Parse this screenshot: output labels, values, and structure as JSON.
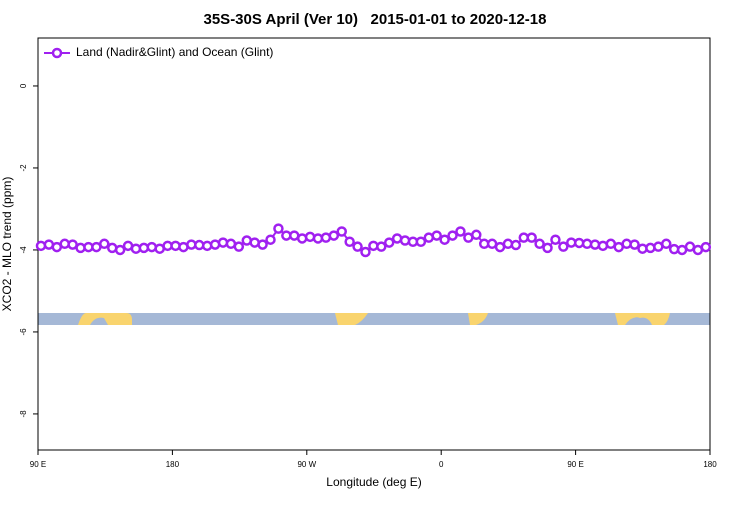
{
  "chart_data": {
    "type": "line",
    "title": "35S-30S April (Ver 10)   2015-01-01 to 2020-12-18",
    "xlabel": "Longitude (deg E)",
    "ylabel": "XCO2 - MLO trend (ppm)",
    "xlim": [
      90,
      540
    ],
    "ylim": [
      -8.88,
      1.17
    ],
    "xticks": [
      {
        "value": 90,
        "label": "90 E"
      },
      180,
      {
        "value": 270,
        "label": "90 W"
      },
      {
        "value": 360,
        "label": "0"
      },
      {
        "value": 450,
        "label": "90 E"
      },
      {
        "value": 540,
        "label": "180"
      }
    ],
    "yticks": [
      0,
      -2,
      -4,
      -6,
      -8
    ],
    "legend": "top-left",
    "x": [
      92,
      97.3,
      102.6,
      107.9,
      113.2,
      118.5,
      123.8,
      129.1,
      134.4,
      139.7,
      145,
      150.3,
      155.6,
      160.9,
      166.2,
      171.5,
      176.8,
      182.1,
      187.4,
      192.7,
      198,
      203.3,
      208.6,
      213.9,
      219.2,
      224.5,
      229.8,
      235.1,
      240.4,
      245.7,
      251,
      256.3,
      261.6,
      266.9,
      272.2,
      277.5,
      282.8,
      288.1,
      293.4,
      298.7,
      304,
      309.3,
      314.6,
      319.9,
      325.2,
      330.5,
      335.8,
      341.1,
      346.4,
      351.7,
      357,
      362.3,
      367.6,
      372.9,
      378.2,
      383.5,
      388.8,
      394.1,
      399.4,
      404.7,
      410,
      415.3,
      420.6,
      425.9,
      431.2,
      436.5,
      441.8,
      447.1,
      452.4,
      457.7,
      463,
      468.3,
      473.6,
      478.9,
      484.2,
      489.5,
      494.8,
      500.1,
      505.4,
      510.7,
      516,
      521.3,
      526.6,
      531.9,
      537.2
    ],
    "series": [
      {
        "name": "Land (Nadir&Glint) and Ocean (Glint)",
        "color": "#a020f0",
        "values": [
          -3.9,
          -3.87,
          -3.93,
          -3.85,
          -3.87,
          -3.95,
          -3.93,
          -3.93,
          -3.85,
          -3.95,
          -4.0,
          -3.9,
          -3.97,
          -3.95,
          -3.93,
          -3.97,
          -3.9,
          -3.9,
          -3.93,
          -3.87,
          -3.88,
          -3.9,
          -3.87,
          -3.82,
          -3.85,
          -3.92,
          -3.77,
          -3.82,
          -3.87,
          -3.75,
          -3.48,
          -3.65,
          -3.65,
          -3.72,
          -3.68,
          -3.72,
          -3.7,
          -3.65,
          -3.55,
          -3.8,
          -3.92,
          -4.05,
          -3.9,
          -3.92,
          -3.82,
          -3.72,
          -3.77,
          -3.8,
          -3.8,
          -3.7,
          -3.65,
          -3.75,
          -3.65,
          -3.55,
          -3.7,
          -3.63,
          -3.85,
          -3.85,
          -3.93,
          -3.85,
          -3.88,
          -3.7,
          -3.7,
          -3.85,
          -3.95,
          -3.75,
          -3.92,
          -3.82,
          -3.83,
          -3.85,
          -3.87,
          -3.9,
          -3.85,
          -3.93,
          -3.85,
          -3.87,
          -3.97,
          -3.95,
          -3.92,
          -3.85,
          -3.98,
          -4.0,
          -3.92,
          -4.0,
          -3.93
        ]
      }
    ]
  }
}
